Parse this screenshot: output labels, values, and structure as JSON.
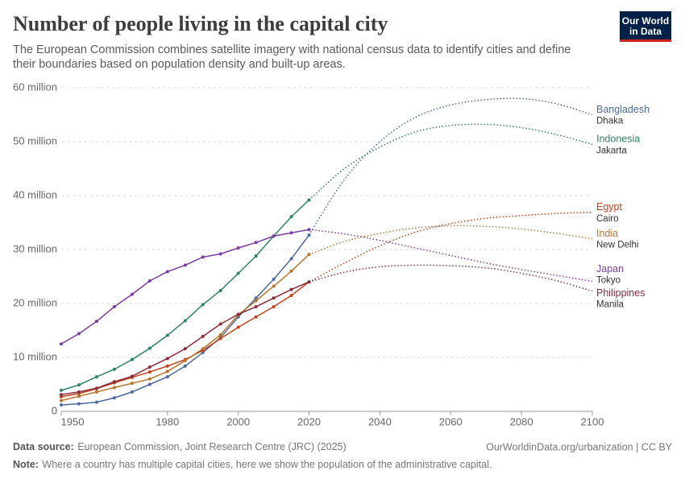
{
  "chart_data": {
    "type": "line",
    "title": "Number of people living in the capital city",
    "subtitle": [
      "The European Commission combines satellite imagery with national census data to identify cities and define",
      "their boundaries based on population density and built-up areas."
    ],
    "logo": [
      "Our World",
      "in Data"
    ],
    "source_label": "Data source:",
    "source": "European Commission, Joint Research Centre (JRC) (2025)",
    "url": "OurWorldinData.org/urbanization | CC BY",
    "note_label": "Note:",
    "note": "Where a country has multiple capital cities, here we show the population of the administrative capital.",
    "x": [
      1950,
      1955,
      1960,
      1965,
      1970,
      1975,
      1980,
      1985,
      1990,
      1995,
      2000,
      2005,
      2010,
      2015,
      2020
    ],
    "projection_x": [
      2020,
      2030,
      2040,
      2050,
      2060,
      2070,
      2080,
      2090,
      2100
    ],
    "xlim": [
      1950,
      2100
    ],
    "xticks": [
      1950,
      1980,
      2000,
      2020,
      2040,
      2060,
      2080,
      2100
    ],
    "ylim": [
      0,
      60000000
    ],
    "yticks": [
      0,
      {
        "value": 10000000,
        "label": "10 million"
      },
      {
        "value": 20000000,
        "label": "20 million"
      },
      {
        "value": 30000000,
        "label": "30 million"
      },
      {
        "value": 40000000,
        "label": "40 million"
      },
      {
        "value": 50000000,
        "label": "50 million"
      },
      {
        "value": 60000000,
        "label": "60 million"
      }
    ],
    "grid": true,
    "series": [
      {
        "name": "Bangladesh",
        "city": "Dhaka",
        "color": "#4c6a9c",
        "values": [
          1200000,
          1400000,
          1700000,
          2500000,
          3600000,
          5000000,
          6400000,
          8400000,
          10900000,
          13700000,
          17500000,
          21000000,
          24500000,
          28300000,
          32700000
        ],
        "projection": [
          32700000,
          43000000,
          50000000,
          54500000,
          56800000,
          57800000,
          58000000,
          57000000,
          55000000
        ]
      },
      {
        "name": "Indonesia",
        "city": "Jakarta",
        "color": "#2d8465",
        "values": [
          3900000,
          4900000,
          6400000,
          7800000,
          9600000,
          11700000,
          14100000,
          16800000,
          19800000,
          22400000,
          25600000,
          28800000,
          32500000,
          36100000,
          39200000
        ],
        "projection": [
          39200000,
          45000000,
          49000000,
          51800000,
          53000000,
          53200000,
          52600000,
          51300000,
          49500000
        ]
      },
      {
        "name": "Egypt",
        "city": "Cairo",
        "color": "#c0431c",
        "values": [
          2700000,
          3300000,
          4200000,
          5300000,
          6300000,
          7300000,
          8400000,
          9600000,
          11300000,
          13500000,
          15600000,
          17500000,
          19400000,
          21500000,
          24000000
        ],
        "projection": [
          24000000,
          27500000,
          30700000,
          33200000,
          34800000,
          35800000,
          36300000,
          36700000,
          36900000
        ]
      },
      {
        "name": "India",
        "city": "New Delhi",
        "color": "#b8752e",
        "values": [
          2000000,
          2800000,
          3600000,
          4400000,
          5200000,
          6000000,
          7400000,
          9400000,
          11600000,
          14200000,
          17900000,
          20500000,
          23200000,
          26000000,
          29100000
        ],
        "projection": [
          29100000,
          31500000,
          33000000,
          34000000,
          34400000,
          34300000,
          33800000,
          33000000,
          32000000
        ]
      },
      {
        "name": "Japan",
        "city": "Tokyo",
        "color": "#7a3e9e",
        "values": [
          12500000,
          14400000,
          16700000,
          19400000,
          21700000,
          24200000,
          25900000,
          27100000,
          28600000,
          29200000,
          30300000,
          31300000,
          32500000,
          33100000,
          33700000
        ],
        "projection": [
          33700000,
          32900000,
          31700000,
          30300000,
          28900000,
          27500000,
          26300000,
          25200000,
          24100000
        ]
      },
      {
        "name": "Philippines",
        "city": "Manila",
        "color": "#8a2c3c",
        "values": [
          3100000,
          3600000,
          4300000,
          5500000,
          6500000,
          8200000,
          9800000,
          11600000,
          13900000,
          16200000,
          18000000,
          19400000,
          21000000,
          22600000,
          24000000
        ],
        "projection": [
          24000000,
          25800000,
          26800000,
          27100000,
          27000000,
          26600000,
          25600000,
          24200000,
          22300000
        ]
      }
    ]
  }
}
